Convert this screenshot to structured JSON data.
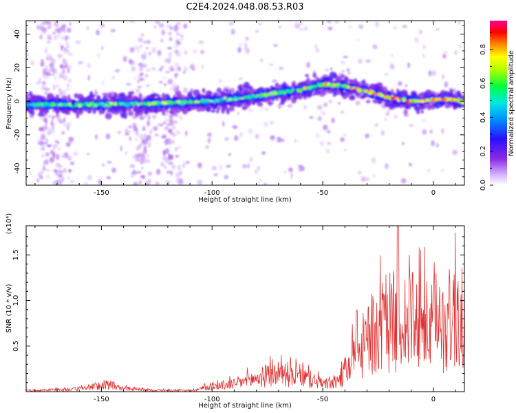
{
  "title": "C2E4.2024.048.08.53.R03",
  "colors": {
    "snr_line": "#e03030",
    "frame": "#000000"
  },
  "chart_data": [
    {
      "type": "heatmap",
      "xlabel": "Height of straight line (km)",
      "ylabel": "Frequency (Hz)",
      "xlim": [
        -184,
        14
      ],
      "ylim": [
        -50,
        48
      ],
      "xticks": [
        -150,
        -100,
        -50,
        0
      ],
      "yticks": [
        -40,
        -20,
        0,
        20,
        40
      ],
      "colorbar": {
        "label": "Normalized spectral amplitude",
        "range": [
          0,
          0.97
        ],
        "ticks": [
          0.0,
          0.2,
          0.4,
          0.6,
          0.8
        ],
        "colormap": "rainbow (purple-blue-cyan-green-yellow-red-magenta)"
      },
      "ridge_center_hz": {
        "x": [
          -184,
          -150,
          -120,
          -100,
          -80,
          -60,
          -50,
          -40,
          -30,
          -20,
          -10,
          0,
          10,
          14
        ],
        "y": [
          -2,
          -2,
          -1,
          0,
          3,
          7,
          10,
          9,
          6,
          2,
          0,
          1,
          1,
          -1
        ]
      }
    },
    {
      "type": "line",
      "xlabel": "Height of straight line (km)",
      "ylabel": "SNR (10 * v/v)",
      "y_multiplier_label": "(x10⁴)",
      "xlim": [
        -184,
        14
      ],
      "ylim": [
        0,
        1.82
      ],
      "xticks": [
        -150,
        -100,
        -50,
        0
      ],
      "yticks": [
        0.5,
        1.0,
        1.5
      ],
      "envelope": {
        "x": [
          -184,
          -160,
          -150,
          -140,
          -130,
          -110,
          -100,
          -90,
          -80,
          -70,
          -60,
          -50,
          -45,
          -40,
          -35,
          -30,
          -25,
          -20,
          -15,
          -10,
          -5,
          0,
          5,
          10,
          14
        ],
        "y": [
          0.02,
          0.05,
          0.12,
          0.06,
          0.03,
          0.02,
          0.1,
          0.15,
          0.25,
          0.35,
          0.3,
          0.15,
          0.15,
          0.35,
          0.7,
          0.95,
          1.15,
          1.3,
          1.4,
          1.3,
          1.25,
          1.2,
          1.3,
          1.45,
          1.3
        ]
      }
    }
  ]
}
